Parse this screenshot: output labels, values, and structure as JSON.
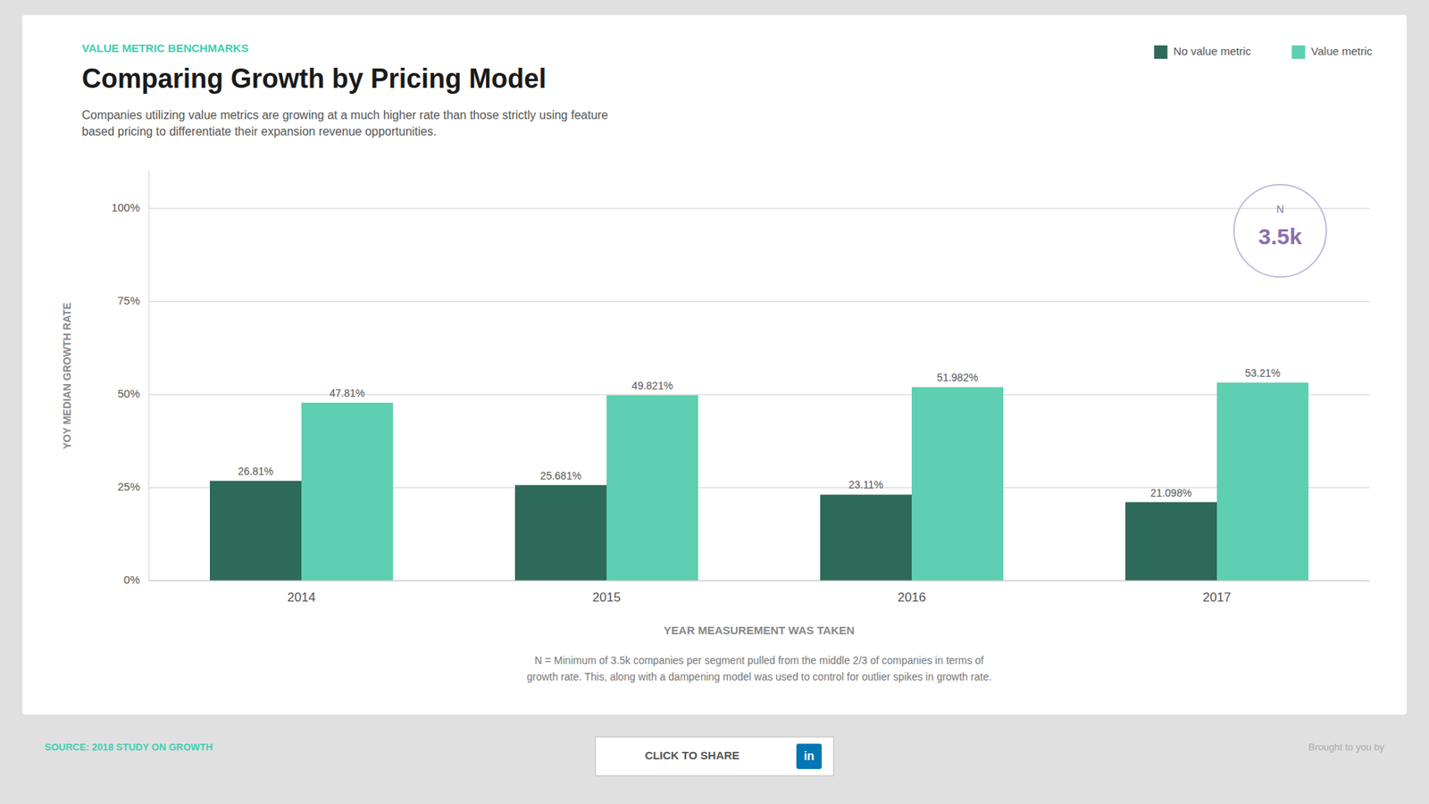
{
  "chart_data": {
    "type": "bar",
    "title": "Comparing Growth by Pricing Model",
    "subtitle": "VALUE METRIC BENCHMARKS",
    "description": "Companies utilizing value metrics are growing at a much higher rate than those strictly using feature\nbased pricing to differentiate their expansion revenue opportunities.",
    "xlabel": "YEAR MEASUREMENT WAS TAKEN",
    "ylabel": "YOY MEDIAN GROWTH RATE",
    "categories": [
      "2014",
      "2015",
      "2016",
      "2017"
    ],
    "series": [
      {
        "name": "No value metric",
        "color": "#2d6a5a",
        "values": [
          26.81,
          25.681,
          23.11,
          21.098
        ],
        "value_labels": [
          "26.81%",
          "25.681%",
          "23.11%",
          "21.098%"
        ]
      },
      {
        "name": "Value metric",
        "color": "#5ecfb1",
        "values": [
          47.81,
          49.821,
          51.982,
          53.21
        ],
        "value_labels": [
          "47.81%",
          "49.821%",
          "51.982%",
          "53.21%"
        ]
      }
    ],
    "ylim": [
      0,
      110
    ],
    "yticks": [
      {
        "value": 0,
        "label": "0%"
      },
      {
        "value": 25,
        "label": "25%"
      },
      {
        "value": 50,
        "label": "50%"
      },
      {
        "value": 75,
        "label": "75%"
      },
      {
        "value": 100,
        "label": "100%"
      }
    ],
    "grid": true,
    "legend": "upper right",
    "data_labels": true,
    "annotations": [
      "N",
      "3.5k",
      "N = Minimum of 3.5k companies per segment pulled from the middle 2/3 of companies in terms of",
      "growth rate. This, along with a dampening model was used to control for outlier spikes in growth rate.",
      "SOURCE: 2018 STUDY ON GROWTH",
      "CLICK TO SHARE",
      "in",
      "Brought to you by"
    ]
  }
}
